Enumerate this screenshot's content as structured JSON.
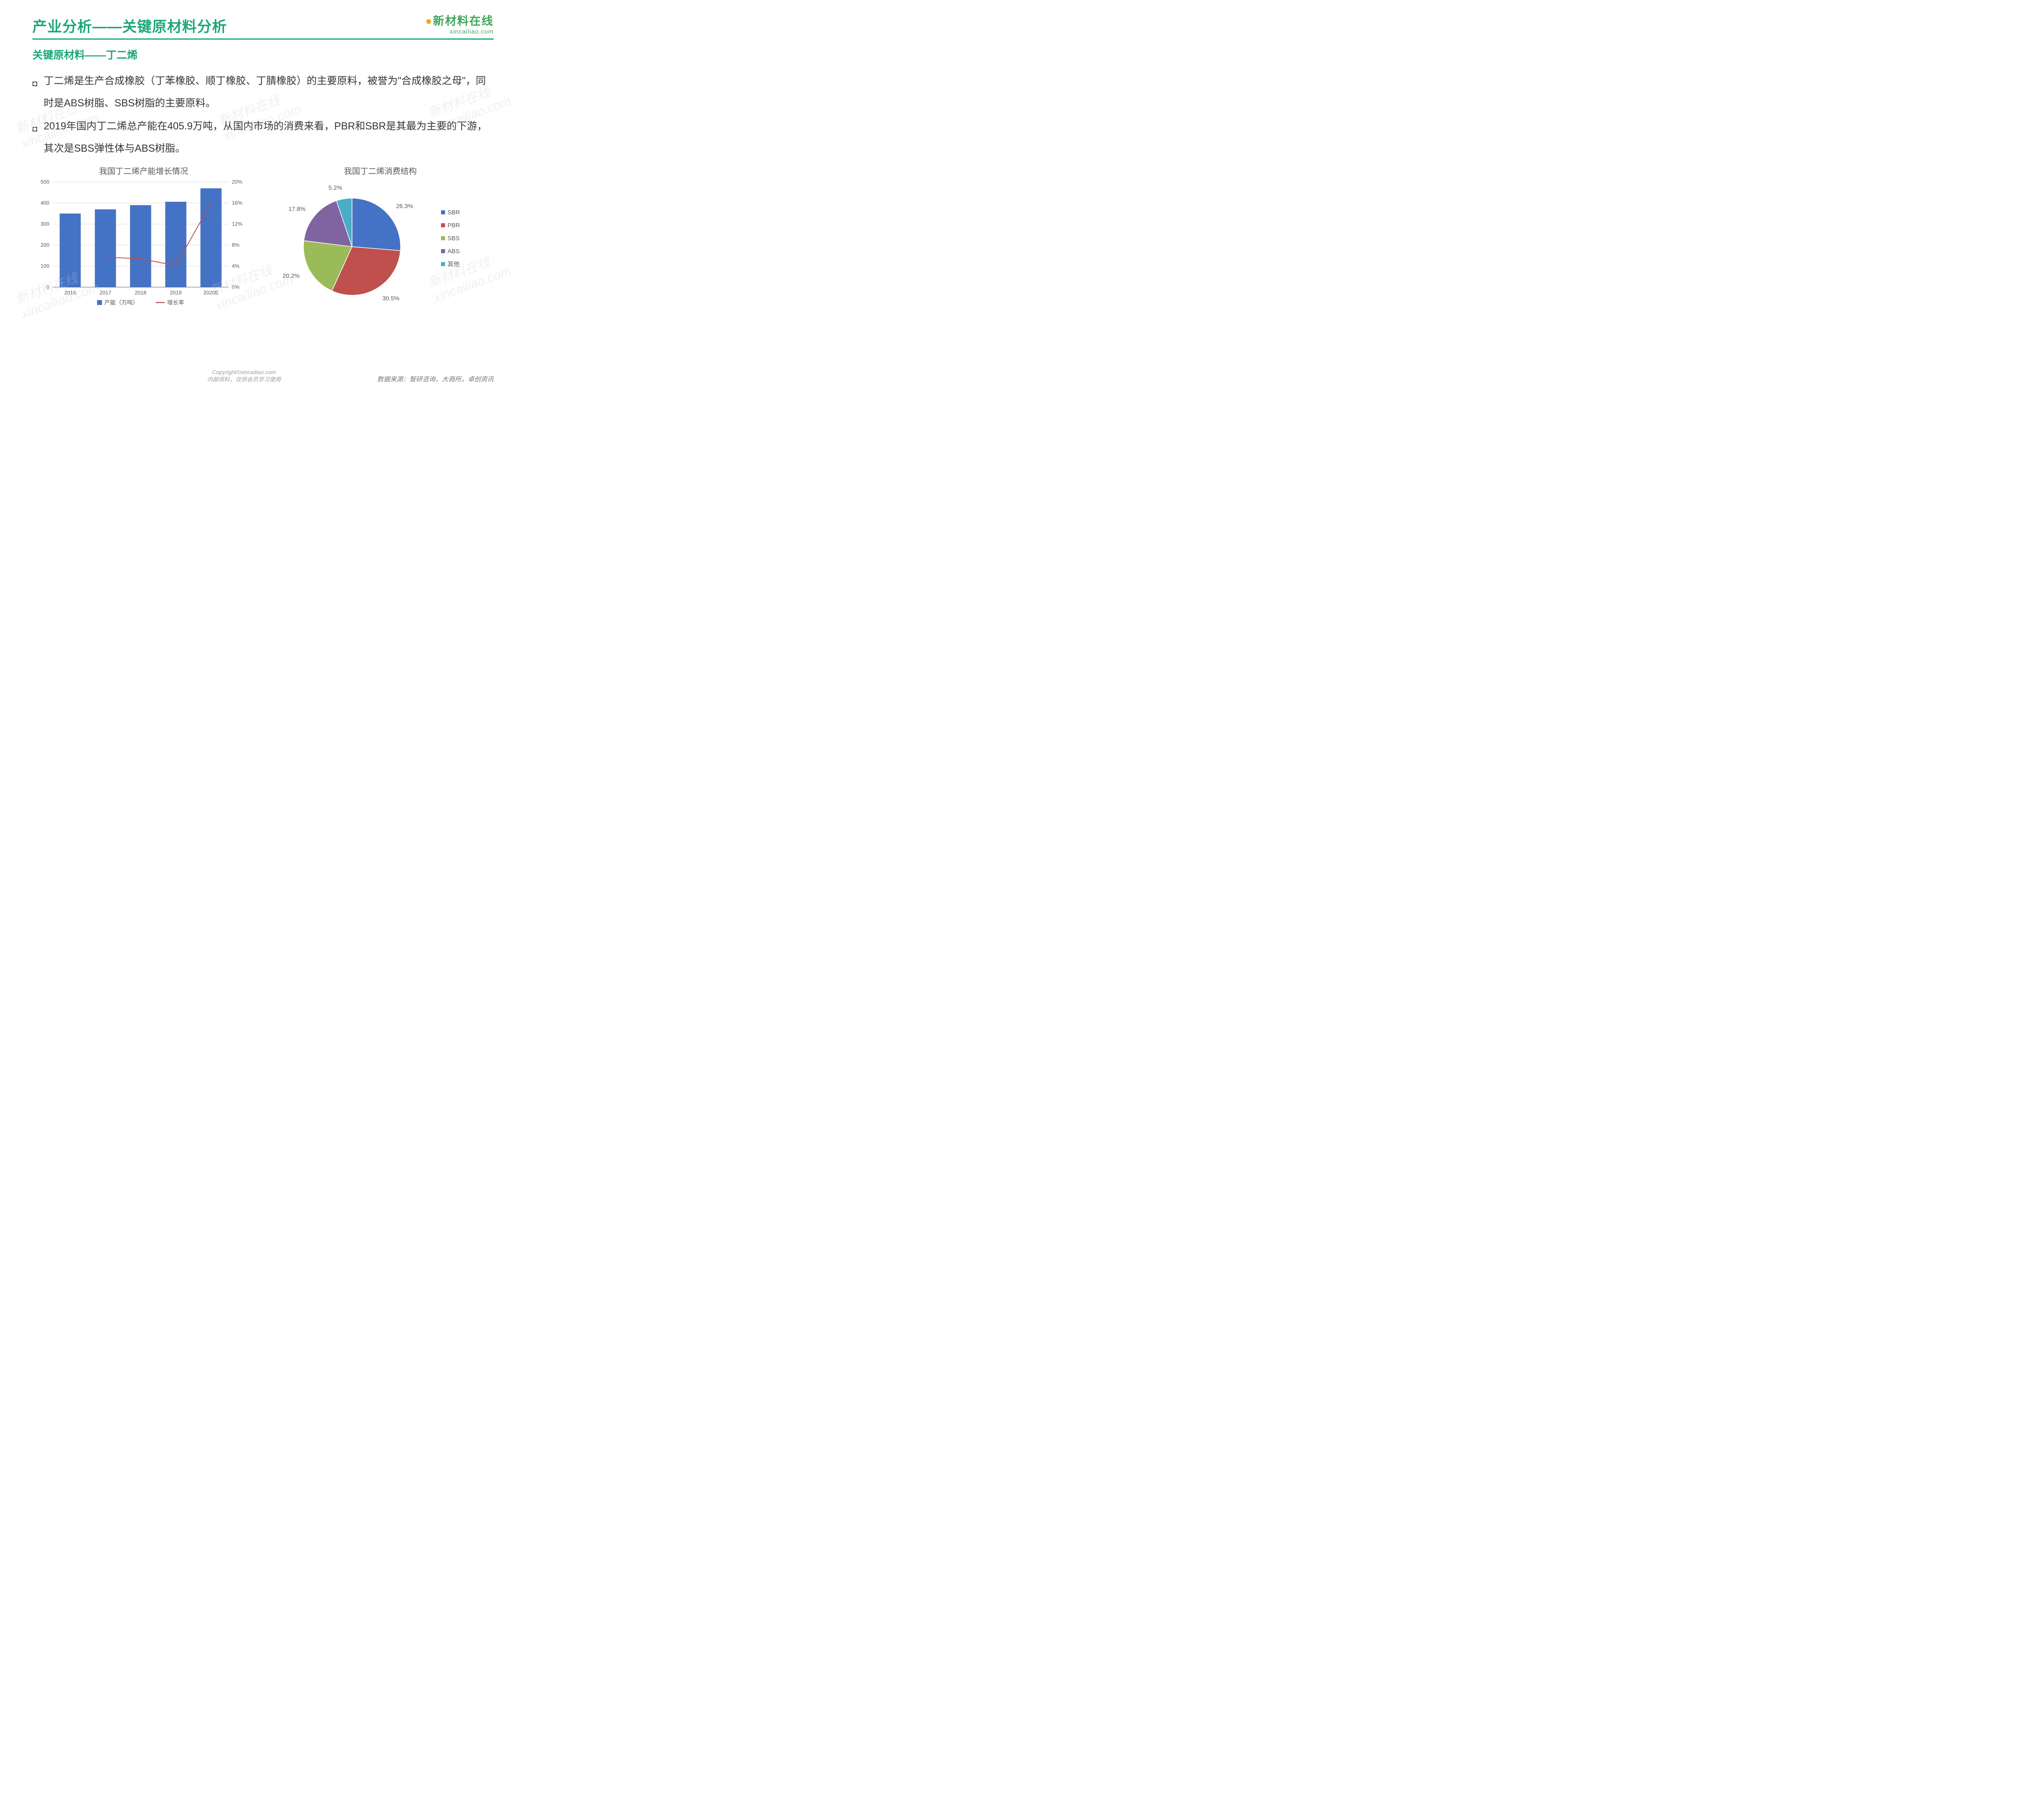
{
  "header": {
    "main_title": "产业分析——关键原材料分析",
    "logo_text": "新材料在线",
    "logo_url": "xincailiao.com"
  },
  "subheading": "关键原材料——丁二烯",
  "bullets": [
    "丁二烯是生产合成橡胶（丁苯橡胶、顺丁橡胶、丁腈橡胶）的主要原料，被誉为\"合成橡胶之母\"，同时是ABS树脂、SBS树脂的主要原料。",
    "2019年国内丁二烯总产能在405.9万吨，从国内市场的消费来看，PBR和SBR是其最为主要的下游，其次是SBS弹性体与ABS树脂。"
  ],
  "bar_chart": {
    "title": "我国丁二烯产能增长情况",
    "categories": [
      "2016",
      "2017",
      "2018",
      "2019",
      "2020E"
    ],
    "bar_series_label": "产能（万吨）",
    "bar_values": [
      350,
      370,
      390,
      406,
      470
    ],
    "bar_color": "#4472c4",
    "line_series_label": "增长率",
    "line_values_pct": [
      null,
      5.7,
      5.4,
      4.1,
      16
    ],
    "line_color": "#c0504d",
    "y1_ticks": [
      0,
      100,
      200,
      300,
      400,
      500
    ],
    "y1_max": 500,
    "y2_ticks": [
      "0%",
      "4%",
      "8%",
      "12%",
      "16%",
      "20%"
    ],
    "y2_max": 20,
    "axis_color": "#595959",
    "grid_color": "#d9d9d9",
    "label_fontsize": 14,
    "tick_fontsize": 13
  },
  "pie_chart": {
    "title": "我国丁二烯消费结构",
    "slices": [
      {
        "label": "SBR",
        "value": 26.3,
        "color": "#4472c4"
      },
      {
        "label": "PBR",
        "value": 30.5,
        "color": "#c0504d"
      },
      {
        "label": "SBS",
        "value": 20.2,
        "color": "#9bbb59"
      },
      {
        "label": "ABS",
        "value": 17.8,
        "color": "#8064a2"
      },
      {
        "label": "其他",
        "value": 5.2,
        "color": "#4bacc6"
      }
    ],
    "label_fontsize": 15,
    "legend_fontsize": 15,
    "legend_marker_size": 10
  },
  "footer": {
    "copyright": "Copyright©xincailiao.com",
    "internal": "内部资料，仅供会员学习使用",
    "source": "数据来源：智研咨询，大商所，卓创资讯"
  },
  "watermark_text": "新材料在线 xincailiao.com"
}
